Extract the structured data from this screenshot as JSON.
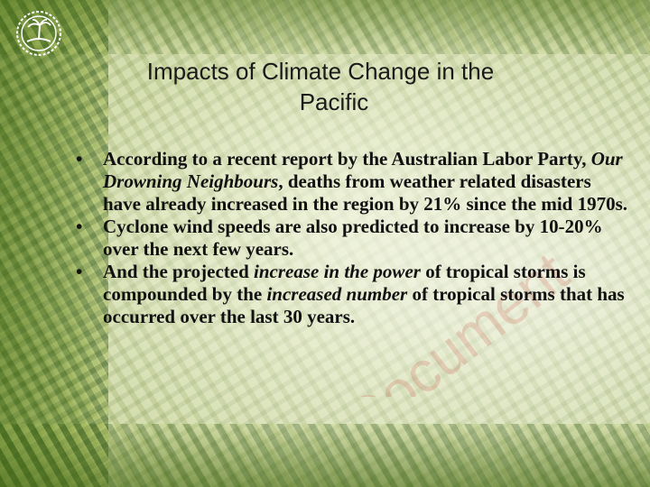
{
  "slide": {
    "title_line1": "Impacts of Climate Change in the",
    "title_line2": "Pacific",
    "watermark_text": "Document",
    "bullet_symbol": "•",
    "bullets": [
      {
        "before": "According to a recent report by the Australian Labor Party, ",
        "italic": "Our Drowning Neighbours",
        "after": ", deaths from weather related disasters have already increased in the region by 21% since the mid 1970s."
      },
      {
        "text": "Cyclone wind speeds are also predicted to increase by 10-20% over the next few years."
      },
      {
        "before": "And the projected ",
        "italic": "increase in the power",
        "middle": " of tropical storms is compounded by the ",
        "italic2": "increased number",
        "after": " of tropical storms that has occurred over the last 30 years."
      }
    ],
    "colors": {
      "text": "#111111",
      "watermark": "#c0392b",
      "background": "#c8d49a"
    },
    "logo_icon": "palm-island-emblem-icon"
  }
}
